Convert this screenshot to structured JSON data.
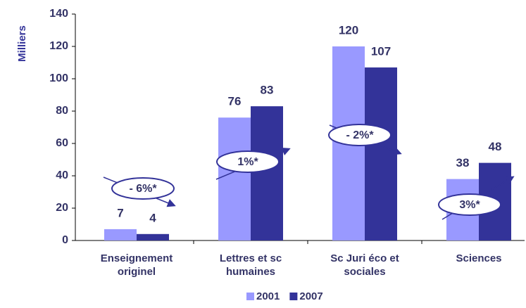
{
  "chart_data": {
    "type": "bar",
    "y_label": "Milliers",
    "categories": [
      "Enseignement originel",
      "Lettres et sc humaines",
      "Sc Juri éco et sociales",
      "Sciences"
    ],
    "series": [
      {
        "name": "2001",
        "color": "#9999ff",
        "values": [
          7,
          76,
          120,
          38
        ]
      },
      {
        "name": "2007",
        "color": "#333399",
        "values": [
          4,
          83,
          107,
          48
        ]
      }
    ],
    "ylim": [
      0,
      140
    ],
    "yticks": [
      0,
      20,
      40,
      60,
      80,
      100,
      120,
      140
    ],
    "annotations": [
      "- 6%*",
      "1%*",
      "- 2%*",
      "3%*"
    ],
    "legend": "bottom"
  }
}
